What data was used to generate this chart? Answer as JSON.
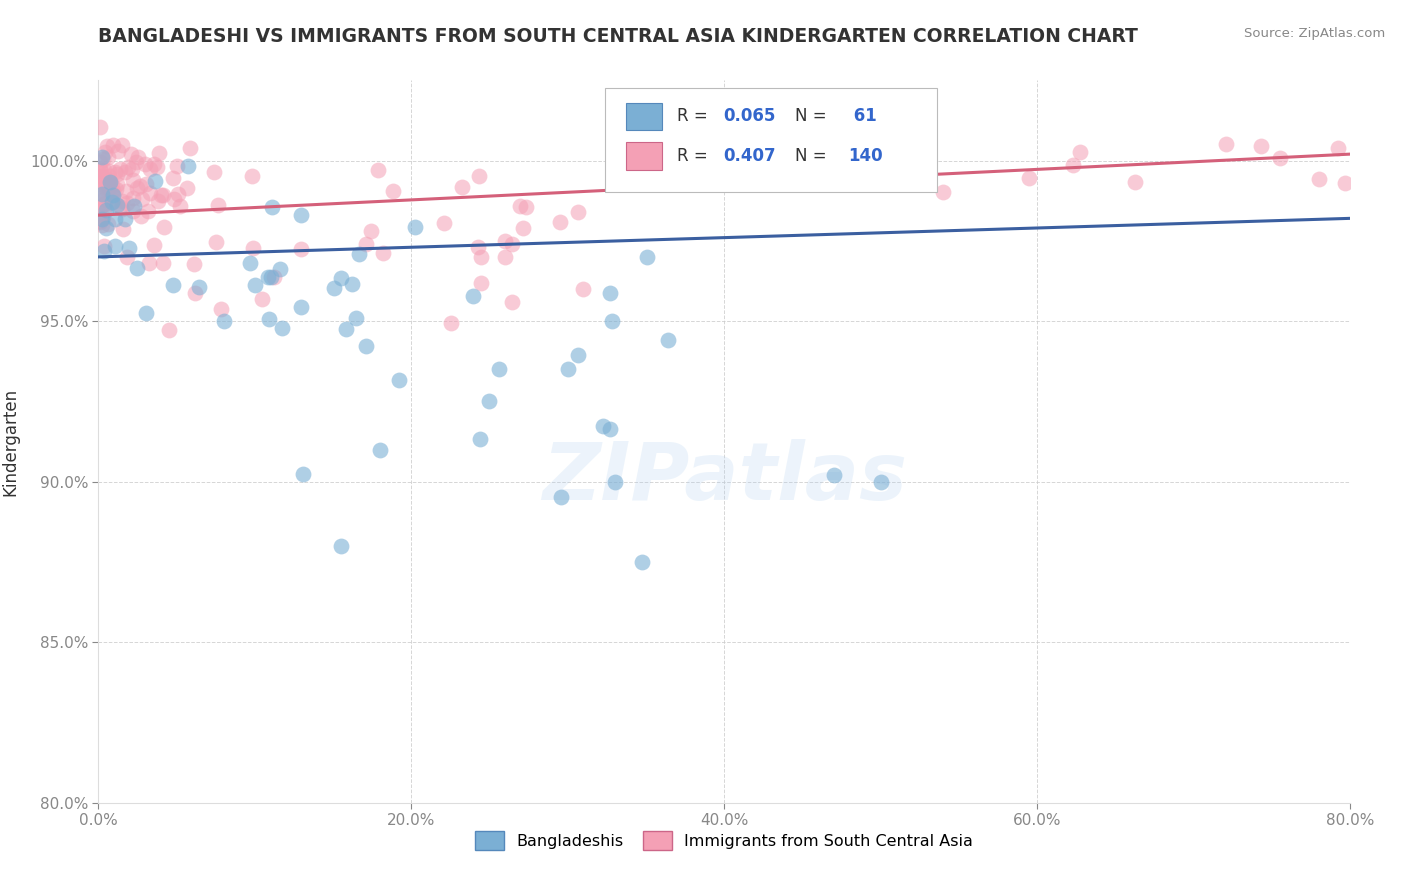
{
  "title": "BANGLADESHI VS IMMIGRANTS FROM SOUTH CENTRAL ASIA KINDERGARTEN CORRELATION CHART",
  "source": "Source: ZipAtlas.com",
  "ylabel": "Kindergarten",
  "x_min": 0.0,
  "x_max": 80.0,
  "y_min": 80.0,
  "y_max": 102.5,
  "x_ticks": [
    0.0,
    20.0,
    40.0,
    60.0,
    80.0
  ],
  "y_ticks": [
    80.0,
    85.0,
    90.0,
    95.0,
    100.0
  ],
  "blue_R": 0.065,
  "blue_N": 61,
  "pink_R": 0.407,
  "pink_N": 140,
  "blue_color": "#7BAFD4",
  "pink_color": "#F4A0B5",
  "blue_line_color": "#3B5FA0",
  "pink_line_color": "#D4607A",
  "legend_blue_label": "Bangladeshis",
  "legend_pink_label": "Immigrants from South Central Asia",
  "watermark": "ZIPatlas",
  "background_color": "#FFFFFF",
  "grid_color": "#CCCCCC",
  "title_color": "#333333",
  "blue_scatter_size": 130,
  "pink_scatter_size": 130
}
